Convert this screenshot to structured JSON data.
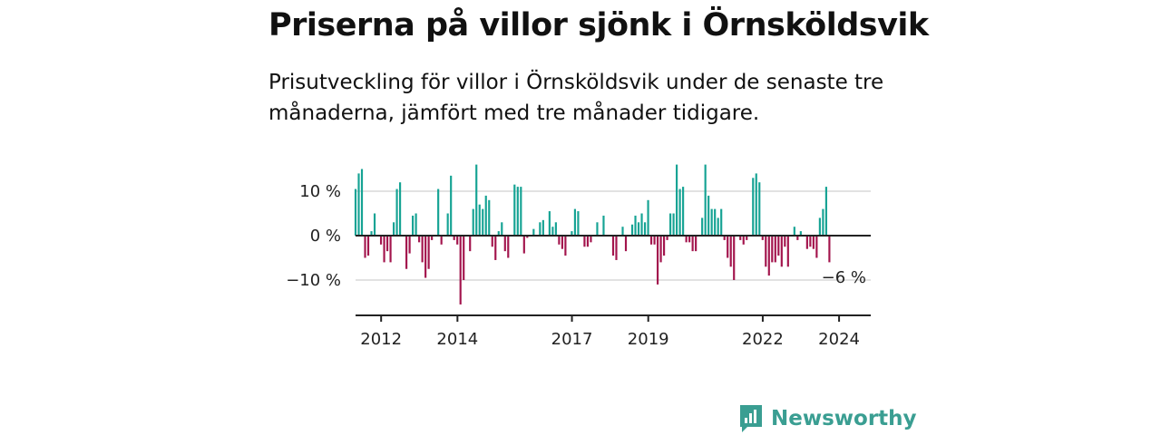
{
  "title": "Priserna på villor sjönk i Örnsköldsvik",
  "subtitle": "Prisutveckling för villor i Örnsköldsvik under de senaste tre månaderna, jämfört med tre månader tidigare.",
  "brand": "Newsworthy",
  "colors": {
    "positive": "#16a394",
    "negative": "#a3154d",
    "brand": "#3a9e92",
    "grid": "#d9d9d9",
    "axis": "#222222"
  },
  "chart_data": {
    "type": "bar",
    "ylim": [
      -17,
      17
    ],
    "y_ticks": [
      {
        "value": 10,
        "label": "10 %"
      },
      {
        "value": 0,
        "label": "0 %"
      },
      {
        "value": -10,
        "label": "−10 %"
      }
    ],
    "x_ticks": [
      {
        "value": 2012,
        "label": "2012"
      },
      {
        "value": 2014,
        "label": "2014"
      },
      {
        "value": 2017,
        "label": "2017"
      },
      {
        "value": 2019,
        "label": "2019"
      },
      {
        "value": 2022,
        "label": "2022"
      },
      {
        "value": 2024,
        "label": "2024"
      }
    ],
    "x_start": 2011.33,
    "x_end": 2024.83,
    "x_step": 0.08333,
    "values": [
      10.5,
      14,
      15,
      -5,
      -4.5,
      1,
      5,
      0,
      -2,
      -6,
      -3.5,
      -6,
      3,
      10.5,
      12,
      0,
      -7.5,
      -4,
      4.5,
      5,
      -1.5,
      -6,
      -9.5,
      -7.5,
      -1,
      0,
      10.5,
      -2,
      0,
      5,
      13.5,
      -1,
      -2,
      -15.5,
      -10,
      0,
      -3.5,
      6,
      16,
      7,
      6,
      9,
      8,
      -2.5,
      -5.5,
      1,
      3,
      -3.5,
      -5,
      0,
      11.5,
      11,
      11,
      -4,
      -0.5,
      0,
      1.5,
      0,
      3,
      3.5,
      0,
      5.5,
      2,
      3,
      -2,
      -3,
      -4.5,
      0,
      1,
      6,
      5.5,
      0,
      -2.5,
      -2.5,
      -1.5,
      0,
      3,
      0,
      4.5,
      0,
      0,
      -4.5,
      -5.5,
      0,
      2,
      -3.5,
      0,
      2.5,
      4.5,
      3,
      5,
      3,
      8,
      -2,
      -2,
      -11,
      -6,
      -4.5,
      -1,
      5,
      5,
      16,
      10.5,
      11,
      -1.5,
      -1.5,
      -3.5,
      -3.5,
      0,
      4,
      16,
      9,
      6,
      6,
      4,
      6,
      -1,
      -5,
      -7,
      -10,
      0,
      -1,
      -2,
      -1,
      0,
      13,
      14,
      12,
      -1,
      -7,
      -9,
      -6,
      -6,
      -4.5,
      -7,
      -2.5,
      -7,
      0,
      2,
      -1,
      1,
      0,
      -3,
      -2.5,
      -3,
      -5,
      4,
      6,
      11,
      -6
    ],
    "annotation": "−6 %"
  }
}
